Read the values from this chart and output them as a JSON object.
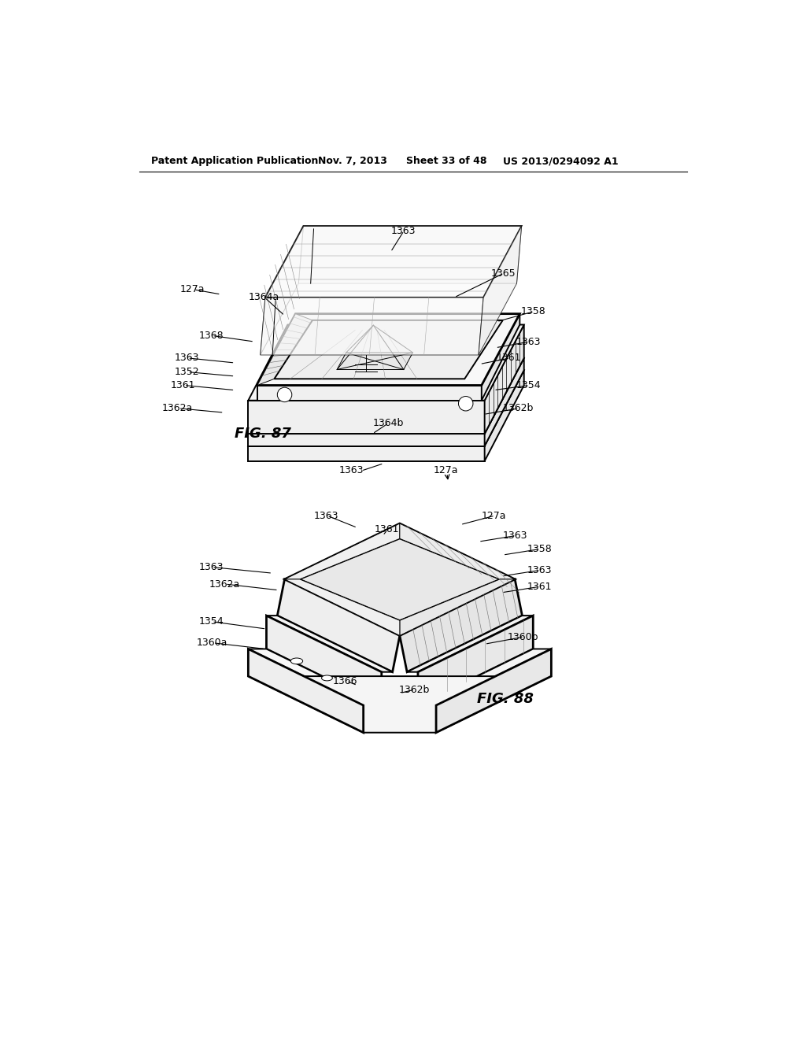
{
  "bg_color": "#ffffff",
  "line_color": "#000000",
  "header_text": "Patent Application Publication",
  "header_date": "Nov. 7, 2013",
  "header_sheet": "Sheet 33 of 48",
  "header_patent": "US 2013/0294092 A1",
  "fig87_label": "FIG. 87",
  "fig88_label": "FIG. 88",
  "lw_main": 1.4,
  "lw_thin": 0.7,
  "lw_thick": 2.0,
  "face_white": "#ffffff",
  "face_light": "#f5f5f5",
  "face_mid": "#eeeeee"
}
